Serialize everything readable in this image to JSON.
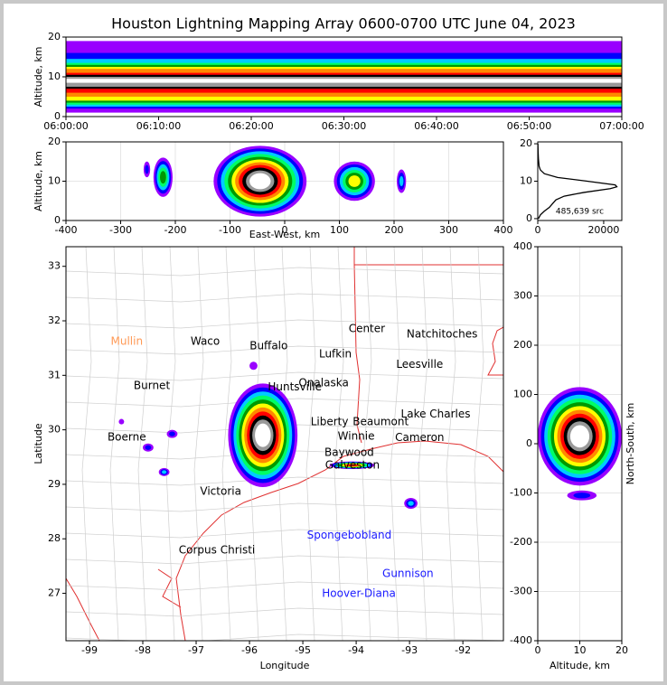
{
  "chart_data": [
    {
      "type": "bands",
      "title": "Houston Lightning Mapping Array 0600-0700 UTC June 04, 2023",
      "ylabel": "Altitude, km",
      "xlim": [
        0,
        60
      ],
      "xticks": [
        {
          "value": 0,
          "label": "06:00:00"
        },
        {
          "value": 10,
          "label": "06:10:00"
        },
        {
          "value": 20,
          "label": "06:20:00"
        },
        {
          "value": 30,
          "label": "06:30:00"
        },
        {
          "value": 40,
          "label": "06:40:00"
        },
        {
          "value": 50,
          "label": "06:50:00"
        },
        {
          "value": 60,
          "label": "07:00:00"
        }
      ],
      "ylim": [
        0,
        20
      ],
      "yticks": [
        0,
        10,
        20
      ],
      "colors": [
        "#9900ff",
        "#0000ff",
        "#00ccff",
        "#00ff66",
        "#009900",
        "#ffff00",
        "#ff8800",
        "#ff0000",
        "#000000",
        "#999999",
        "#ffffff"
      ],
      "bands": [
        [
          1,
          19
        ],
        [
          2,
          16
        ],
        [
          2.5,
          14.5
        ],
        [
          3,
          13.5
        ],
        [
          3.5,
          13
        ],
        [
          4,
          12.5
        ],
        [
          5,
          12
        ],
        [
          6,
          11
        ],
        [
          7,
          10.5
        ],
        [
          7.5,
          10
        ],
        [
          8.5,
          9.5
        ]
      ]
    },
    {
      "type": "density",
      "xlabel": "East-West, km",
      "ylabel": "Altitude, km",
      "xlim": [
        -400,
        400
      ],
      "xticks": [
        -400,
        -300,
        -200,
        -100,
        0,
        100,
        200,
        300,
        400
      ],
      "ylim": [
        0,
        20
      ],
      "yticks": [
        0,
        10,
        20
      ],
      "grid": true,
      "colors": [
        "#9900ff",
        "#0000ff",
        "#00ccff",
        "#00ff66",
        "#009900",
        "#ffff00",
        "#ff8800",
        "#ff0000",
        "#000000",
        "#999999",
        "#ffffff"
      ],
      "cells": [
        {
          "x": [
            -130,
            40
          ],
          "y": [
            1,
            19
          ],
          "levels": 11
        },
        {
          "x": [
            -240,
            -205
          ],
          "y": [
            6,
            16
          ],
          "levels": 5
        },
        {
          "x": [
            90,
            165
          ],
          "y": [
            5,
            15
          ],
          "levels": 6
        },
        {
          "x": [
            205,
            222
          ],
          "y": [
            7,
            13
          ],
          "levels": 3
        },
        {
          "x": [
            -258,
            -246
          ],
          "y": [
            11,
            15
          ],
          "levels": 2
        }
      ]
    },
    {
      "type": "line",
      "annotation": "485,639 src",
      "color": "#000000",
      "xlim": [
        0,
        25500
      ],
      "xticks": [
        0,
        20000
      ],
      "ylim": [
        -0.5,
        20.5
      ],
      "yticks": [
        0,
        10,
        20
      ],
      "altitudes": [
        0,
        1,
        2,
        3,
        4,
        5,
        6,
        7,
        8,
        8.5,
        9,
        10,
        11,
        12,
        13,
        14,
        16,
        18,
        20
      ],
      "values": [
        200,
        800,
        2000,
        3500,
        4500,
        5500,
        8000,
        14000,
        22000,
        24000,
        23500,
        15000,
        6000,
        2000,
        800,
        400,
        200,
        100,
        50
      ]
    },
    {
      "type": "map",
      "xlabel": "Longitude",
      "ylabel": "Latitude",
      "xlim": [
        -99.44,
        -91.24
      ],
      "xticks": [
        -99,
        -98,
        -97,
        -96,
        -95,
        -94,
        -93,
        -92
      ],
      "ylim": [
        26.13,
        33.36
      ],
      "yticks": [
        27,
        28,
        29,
        30,
        31,
        32,
        33
      ],
      "colors": [
        "#9900ff",
        "#0000ff",
        "#00ccff",
        "#00ff66",
        "#009900",
        "#ffff00",
        "#ff8800",
        "#ff0000",
        "#000000",
        "#999999",
        "#ffffff"
      ],
      "cells": [
        {
          "x": [
            -96.4,
            -95.1
          ],
          "y": [
            28.95,
            30.85
          ],
          "levels": 11
        },
        {
          "x": [
            -94.5,
            -93.65
          ],
          "y": [
            29.28,
            29.42
          ],
          "levels": 8
        },
        {
          "x": [
            -93.1,
            -92.85
          ],
          "y": [
            28.55,
            28.75
          ],
          "levels": 3
        },
        {
          "x": [
            -97.7,
            -97.5
          ],
          "y": [
            29.15,
            29.3
          ],
          "levels": 3
        },
        {
          "x": [
            -98.0,
            -97.8
          ],
          "y": [
            29.6,
            29.75
          ],
          "levels": 2
        },
        {
          "x": [
            -97.55,
            -97.35
          ],
          "y": [
            29.85,
            30.0
          ],
          "levels": 2
        },
        {
          "x": [
            -98.45,
            -98.35
          ],
          "y": [
            30.1,
            30.2
          ],
          "levels": 1
        },
        {
          "x": [
            -96.0,
            -95.85
          ],
          "y": [
            31.1,
            31.25
          ],
          "levels": 1
        }
      ],
      "places": [
        {
          "name": "Mullin",
          "lon": -98.3,
          "lat": 31.62,
          "color": "#ff9955"
        },
        {
          "name": "Waco",
          "lon": -96.83,
          "lat": 31.62,
          "color": "#000000"
        },
        {
          "name": "Buffalo",
          "lon": -95.64,
          "lat": 31.54,
          "color": "#000000"
        },
        {
          "name": "Lufkin",
          "lon": -94.39,
          "lat": 31.39,
          "color": "#000000"
        },
        {
          "name": "Center",
          "lon": -93.8,
          "lat": 31.85,
          "color": "#000000"
        },
        {
          "name": "Natchitoches",
          "lon": -92.39,
          "lat": 31.75,
          "color": "#000000"
        },
        {
          "name": "Leesville",
          "lon": -92.81,
          "lat": 31.2,
          "color": "#000000"
        },
        {
          "name": "Burnet",
          "lon": -97.83,
          "lat": 30.81,
          "color": "#000000"
        },
        {
          "name": "Onalaska",
          "lon": -94.61,
          "lat": 30.86,
          "color": "#000000"
        },
        {
          "name": "Huntsville",
          "lon": -95.15,
          "lat": 30.78,
          "color": "#000000"
        },
        {
          "name": "Liberty",
          "lon": -94.5,
          "lat": 30.14,
          "color": "#000000"
        },
        {
          "name": "Beaumont",
          "lon": -93.54,
          "lat": 30.14,
          "color": "#000000"
        },
        {
          "name": "Lake Charles",
          "lon": -92.51,
          "lat": 30.28,
          "color": "#000000"
        },
        {
          "name": "Winnie",
          "lon": -94.0,
          "lat": 29.88,
          "color": "#000000"
        },
        {
          "name": "Cameron",
          "lon": -92.81,
          "lat": 29.85,
          "color": "#000000"
        },
        {
          "name": "Boerne",
          "lon": -98.3,
          "lat": 29.86,
          "color": "#000000"
        },
        {
          "name": "Baywood",
          "lon": -94.13,
          "lat": 29.58,
          "color": "#000000"
        },
        {
          "name": "Galveston",
          "lon": -94.07,
          "lat": 29.35,
          "color": "#000000"
        },
        {
          "name": "Victoria",
          "lon": -96.54,
          "lat": 28.87,
          "color": "#000000"
        },
        {
          "name": "Corpus Christi",
          "lon": -96.61,
          "lat": 27.79,
          "color": "#000000"
        },
        {
          "name": "Spongebobland",
          "lon": -94.13,
          "lat": 28.06,
          "color": "#1a1aff"
        },
        {
          "name": "Gunnison",
          "lon": -93.03,
          "lat": 27.36,
          "color": "#1a1aff"
        },
        {
          "name": "Hoover-Diana",
          "lon": -93.95,
          "lat": 26.99,
          "color": "#1a1aff"
        }
      ]
    },
    {
      "type": "density",
      "xlabel": "Altitude, km",
      "ylabel": "North-South, km",
      "ylabel_side": "right",
      "xlim": [
        0,
        20
      ],
      "xticks": [
        0,
        10,
        20
      ],
      "ylim": [
        -400,
        400
      ],
      "yticks": [
        -400,
        -300,
        -200,
        -100,
        0,
        100,
        200,
        300,
        400
      ],
      "grid": true,
      "colors": [
        "#9900ff",
        "#0000ff",
        "#00ccff",
        "#00ff66",
        "#009900",
        "#ffff00",
        "#ff8800",
        "#ff0000",
        "#000000",
        "#999999",
        "#ffffff"
      ],
      "cells": [
        {
          "x": [
            0,
            20
          ],
          "y": [
            -85,
            115
          ],
          "levels": 11
        },
        {
          "x": [
            7,
            14
          ],
          "y": [
            -115,
            -95
          ],
          "levels": 2
        }
      ]
    }
  ]
}
